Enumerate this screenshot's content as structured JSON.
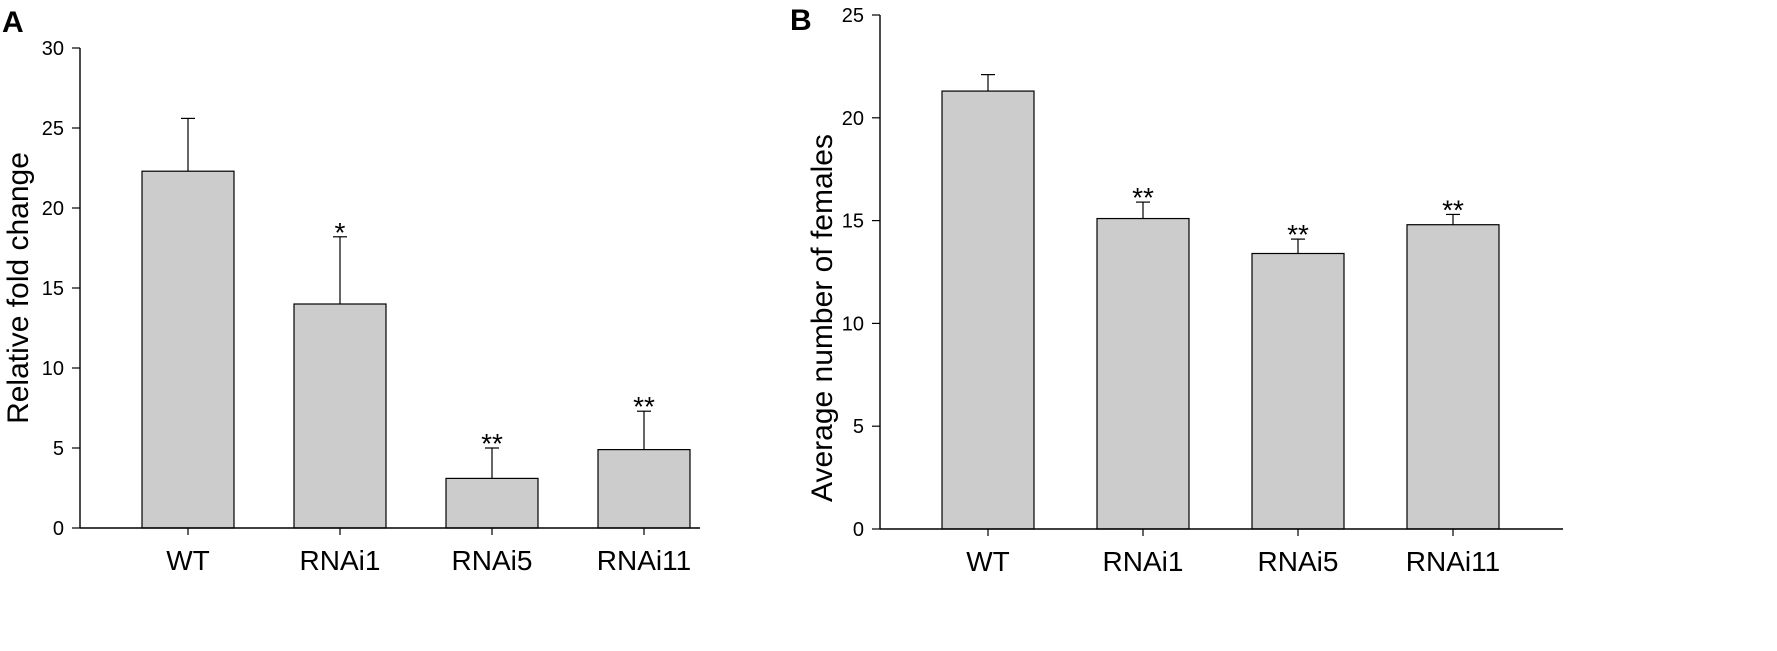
{
  "chart_data": [
    {
      "type": "bar",
      "panel_label": "A",
      "title": "",
      "xlabel": "",
      "ylabel": "Relative fold change",
      "ylim": [
        0,
        30
      ],
      "yticks": [
        0,
        5,
        10,
        15,
        20,
        25,
        30
      ],
      "categories": [
        "WT",
        "RNAi1",
        "RNAi5",
        "RNAi11"
      ],
      "values": [
        22.3,
        14.0,
        3.1,
        4.9
      ],
      "errors": [
        3.3,
        4.2,
        1.9,
        2.4
      ],
      "significance": [
        "",
        "*",
        "**",
        "**"
      ],
      "bar_color": "#cccccc"
    },
    {
      "type": "bar",
      "panel_label": "B",
      "title": "",
      "xlabel": "",
      "ylabel": "Average number of females",
      "ylim": [
        0,
        25
      ],
      "yticks": [
        0,
        5,
        10,
        15,
        20,
        25
      ],
      "categories": [
        "WT",
        "RNAi1",
        "RNAi5",
        "RNAi11"
      ],
      "values": [
        21.3,
        15.1,
        13.4,
        14.8
      ],
      "errors": [
        0.8,
        0.8,
        0.7,
        0.5
      ],
      "significance": [
        "",
        "**",
        "**",
        "**"
      ],
      "bar_color": "#cccccc"
    }
  ]
}
